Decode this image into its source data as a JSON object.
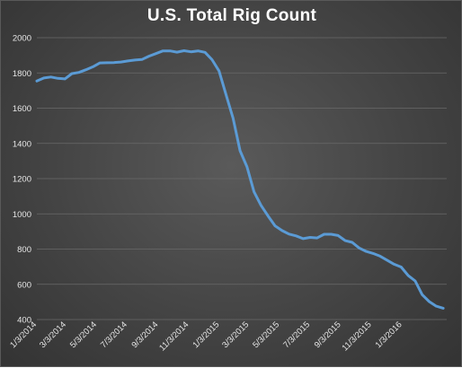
{
  "chart_data": {
    "type": "line",
    "title": "U.S. Total Rig Count",
    "xlabel": "",
    "ylabel": "",
    "ylim": [
      400,
      2000
    ],
    "yticks": [
      400,
      600,
      800,
      1000,
      1200,
      1400,
      1600,
      1800,
      2000
    ],
    "xlim": [
      "2014-01-03",
      "2016-04-01"
    ],
    "xtick_labels": [
      "1/3/2014",
      "3/3/2014",
      "5/3/2014",
      "7/3/2014",
      "9/3/2014",
      "11/3/2014",
      "1/3/2015",
      "3/3/2015",
      "5/3/2015",
      "7/3/2015",
      "9/3/2015",
      "11/3/2015",
      "1/3/2016"
    ],
    "xtick_dates": [
      "2014-01-03",
      "2014-03-03",
      "2014-05-03",
      "2014-07-03",
      "2014-09-03",
      "2014-11-03",
      "2015-01-03",
      "2015-03-03",
      "2015-05-03",
      "2015-07-03",
      "2015-09-03",
      "2015-11-03",
      "2016-01-03"
    ],
    "grid": true,
    "legend": "none",
    "line_color": "#5b9bd5",
    "series": [
      {
        "x": [
          "2014-01-03",
          "2014-01-17",
          "2014-01-31",
          "2014-02-14",
          "2014-02-28",
          "2014-03-14",
          "2014-03-28",
          "2014-04-11",
          "2014-04-25",
          "2014-05-09",
          "2014-05-23",
          "2014-06-06",
          "2014-06-20",
          "2014-07-04",
          "2014-07-18",
          "2014-08-01",
          "2014-08-15",
          "2014-08-29",
          "2014-09-12",
          "2014-09-26",
          "2014-10-10",
          "2014-10-24",
          "2014-11-07",
          "2014-11-21",
          "2014-12-05",
          "2014-12-19",
          "2015-01-02",
          "2015-01-16",
          "2015-01-30",
          "2015-02-13",
          "2015-02-27",
          "2015-03-13",
          "2015-03-27",
          "2015-04-10",
          "2015-04-24",
          "2015-05-08",
          "2015-05-22",
          "2015-06-05",
          "2015-06-19",
          "2015-07-03",
          "2015-07-17",
          "2015-07-31",
          "2015-08-14",
          "2015-08-28",
          "2015-09-11",
          "2015-09-25",
          "2015-10-09",
          "2015-10-23",
          "2015-11-06",
          "2015-11-20",
          "2015-12-04",
          "2015-12-18",
          "2016-01-01",
          "2016-01-15",
          "2016-01-29",
          "2016-02-12",
          "2016-02-26",
          "2016-03-11",
          "2016-03-25"
        ],
        "values": [
          1754,
          1771,
          1777,
          1769,
          1766,
          1796,
          1803,
          1818,
          1835,
          1857,
          1858,
          1859,
          1862,
          1868,
          1873,
          1876,
          1895,
          1910,
          1925,
          1925,
          1918,
          1926,
          1920,
          1925,
          1917,
          1875,
          1811,
          1676,
          1543,
          1358,
          1267,
          1125,
          1048,
          988,
          932,
          905,
          885,
          875,
          859,
          866,
          863,
          884,
          884,
          877,
          848,
          838,
          806,
          787,
          775,
          760,
          737,
          714,
          698,
          650,
          619,
          541,
          502,
          476,
          464
        ]
      }
    ]
  }
}
